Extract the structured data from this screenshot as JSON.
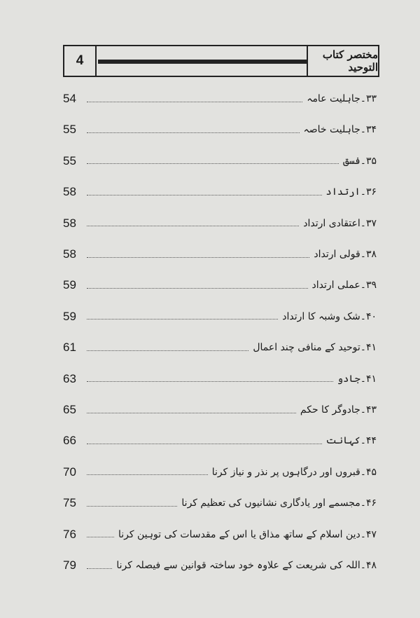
{
  "header": {
    "page_number": "4",
    "book_title": "مختصر کتاب التوحید"
  },
  "entries": [
    {
      "title": "۳۳۔جاہلیت عامہ",
      "page": "54"
    },
    {
      "title": "۳۴۔جاہلیت خاصہ",
      "page": "55"
    },
    {
      "title": "۳۵۔فسق",
      "page": "55"
    },
    {
      "title": "۳۶۔ارتداد",
      "page": "58"
    },
    {
      "title": "۳۷۔اعتقادی ارتداد",
      "page": "58"
    },
    {
      "title": "۳۸۔قولی ارتداد",
      "page": "58"
    },
    {
      "title": "۳۹۔عملی ارتداد",
      "page": "59"
    },
    {
      "title": "۴۰۔شک وشبہ کا ارتداد",
      "page": "59"
    },
    {
      "title": "۴۱۔توحید کے منافی چند اعمال",
      "page": "61"
    },
    {
      "title": "۴۱۔جادو",
      "page": "63"
    },
    {
      "title": "۴۳۔جادوگر کا حکم",
      "page": "65"
    },
    {
      "title": "۴۴۔کہانت",
      "page": "66"
    },
    {
      "title": "۴۵۔قبروں اور درگاہوں پر نذر و نیاز کرنا",
      "page": "70"
    },
    {
      "title": "۴۶۔مجسمے اور یادگاری نشانیوں کی تعظیم کرنا",
      "page": "75"
    },
    {
      "title": "۴۷۔دین اسلام کے ساتھ مذاق یا اس کے مقدسات کی توہین کرنا",
      "page": "76"
    },
    {
      "title": "۴۸۔اللہ کی شریعت کے علاوہ خود ساختہ قوانین سے فیصلہ کرنا",
      "page": "79"
    }
  ]
}
